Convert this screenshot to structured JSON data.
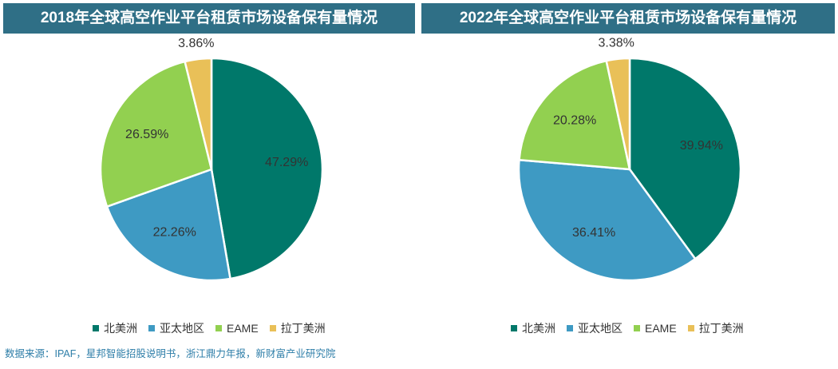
{
  "source_note": "数据来源：IPAF，星邦智能招股说明书，浙江鼎力年报，新财富产业研究院",
  "legend": {
    "items": [
      {
        "label": "北美洲",
        "color": "#00786a"
      },
      {
        "label": "亚太地区",
        "color": "#3e9ac3"
      },
      {
        "label": "EAME",
        "color": "#92d050"
      },
      {
        "label": "拉丁美洲",
        "color": "#e9c058"
      }
    ]
  },
  "chart_data": [
    {
      "type": "pie",
      "title": "2018年全球高空作业平台租赁市场设备保有量情况",
      "categories": [
        "北美洲",
        "亚太地区",
        "EAME",
        "拉丁美洲"
      ],
      "values": [
        47.29,
        22.26,
        26.59,
        3.86
      ],
      "labels": [
        "47.29%",
        "22.26%",
        "26.59%",
        "3.86%"
      ],
      "colors": [
        "#00786a",
        "#3e9ac3",
        "#92d050",
        "#e9c058"
      ],
      "legend_position": "bottom"
    },
    {
      "type": "pie",
      "title": "2022年全球高空作业平台租赁市场设备保有量情况",
      "categories": [
        "北美洲",
        "亚太地区",
        "EAME",
        "拉丁美洲"
      ],
      "values": [
        39.94,
        36.41,
        20.28,
        3.38
      ],
      "labels": [
        "39.94%",
        "36.41%",
        "20.28%",
        "3.38%"
      ],
      "colors": [
        "#00786a",
        "#3e9ac3",
        "#92d050",
        "#e9c058"
      ],
      "legend_position": "bottom"
    }
  ]
}
